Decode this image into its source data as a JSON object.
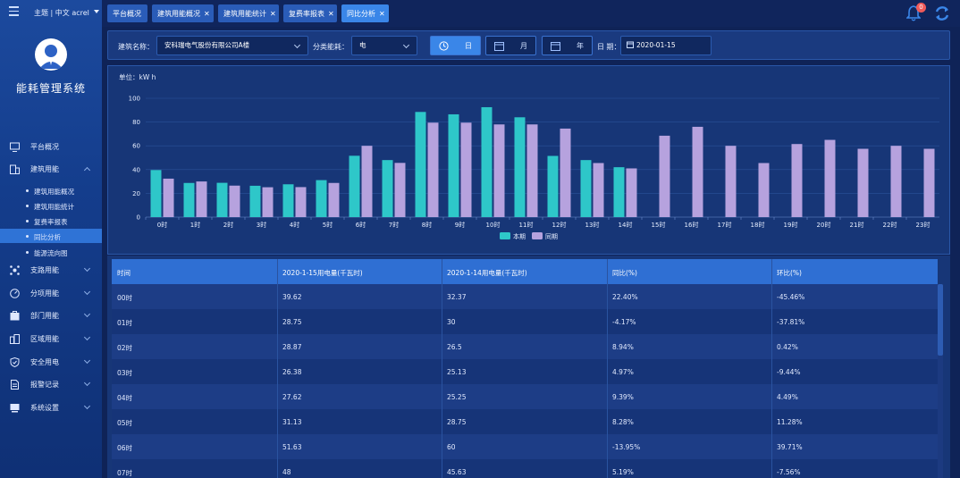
{
  "header": {
    "theme_label": "主题 | 中文  acrel",
    "notification_count": "0"
  },
  "sidebar": {
    "app_title": "能耗管理系统",
    "items": [
      {
        "label": "平台概况",
        "icon": "monitor-icon",
        "has_children": false
      },
      {
        "label": "建筑用能",
        "icon": "building-icon",
        "has_children": true
      },
      {
        "label": "支路用能",
        "icon": "branch-icon",
        "has_children": true
      },
      {
        "label": "分项用能",
        "icon": "gauge-icon",
        "has_children": true
      },
      {
        "label": "部门用能",
        "icon": "department-icon",
        "has_children": true
      },
      {
        "label": "区域用能",
        "icon": "region-icon",
        "has_children": true
      },
      {
        "label": "安全用电",
        "icon": "shield-icon",
        "has_children": true
      },
      {
        "label": "报警记录",
        "icon": "document-icon",
        "has_children": true
      },
      {
        "label": "系统设置",
        "icon": "settings-icon",
        "has_children": true
      }
    ],
    "subitems": [
      {
        "label": "建筑用能概况",
        "active": false
      },
      {
        "label": "建筑用能统计",
        "active": false
      },
      {
        "label": "复费率报表",
        "active": false
      },
      {
        "label": "同比分析",
        "active": true
      },
      {
        "label": "能源流向图",
        "active": false
      }
    ]
  },
  "tabs": [
    {
      "label": "平台概况",
      "closable": false,
      "active": false
    },
    {
      "label": "建筑用能概况",
      "closable": true,
      "active": false
    },
    {
      "label": "建筑用能统计",
      "closable": true,
      "active": false
    },
    {
      "label": "复费率报表",
      "closable": true,
      "active": false
    },
    {
      "label": "同比分析",
      "closable": true,
      "active": true
    }
  ],
  "filters": {
    "building_label": "建筑名称：",
    "building_value": "安科瑞电气股份有限公司A楼",
    "category_label": "分类能耗：",
    "category_value": "电",
    "period_buttons": [
      {
        "label": "日",
        "icon": "clock-icon",
        "active": true
      },
      {
        "label": "月",
        "icon": "calendar-icon",
        "active": false
      },
      {
        "label": "年",
        "icon": "calendar-icon",
        "active": false
      }
    ],
    "date_label": "日 期：",
    "date_value": "2020-01-15"
  },
  "chart_data": {
    "type": "bar",
    "unit_label": "单位：kW h",
    "categories": [
      "0时",
      "1时",
      "2时",
      "3时",
      "4时",
      "5时",
      "6时",
      "7时",
      "8时",
      "9时",
      "10时",
      "11时",
      "12时",
      "13时",
      "14时",
      "15时",
      "16时",
      "17时",
      "18时",
      "19时",
      "20时",
      "21时",
      "22时",
      "23时"
    ],
    "series": [
      {
        "name": "本期",
        "color": "#2ec7c9",
        "values": [
          39.62,
          28.75,
          28.87,
          26.38,
          27.62,
          31.13,
          51.63,
          48,
          88.5,
          86.5,
          92.5,
          84,
          51.5,
          48,
          42,
          null,
          null,
          null,
          null,
          null,
          null,
          null,
          null,
          null
        ]
      },
      {
        "name": "同期",
        "color": "#b6a2de",
        "values": [
          32.37,
          30,
          26.5,
          25.13,
          25.25,
          28.75,
          60,
          45.63,
          79.5,
          79.5,
          78,
          78,
          74.5,
          45.5,
          41,
          68.5,
          76,
          60,
          45.5,
          61.5,
          65,
          57.5,
          60,
          57.5
        ]
      }
    ],
    "ylim": [
      0,
      100
    ],
    "yticks": [
      0,
      20,
      40,
      60,
      80,
      100
    ],
    "grid": true,
    "legend": "bottom-center"
  },
  "table": {
    "columns": [
      "时间",
      "2020-1-15用电量(千瓦时)",
      "2020-1-14用电量(千瓦时)",
      "同比(%)",
      "环比(%)"
    ],
    "rows": [
      [
        "00时",
        "39.62",
        "32.37",
        "22.40%",
        "-45.46%"
      ],
      [
        "01时",
        "28.75",
        "30",
        "-4.17%",
        "-37.81%"
      ],
      [
        "02时",
        "28.87",
        "26.5",
        "8.94%",
        "0.42%"
      ],
      [
        "03时",
        "26.38",
        "25.13",
        "4.97%",
        "-9.44%"
      ],
      [
        "04时",
        "27.62",
        "25.25",
        "9.39%",
        "4.49%"
      ],
      [
        "05时",
        "31.13",
        "28.75",
        "8.28%",
        "11.28%"
      ],
      [
        "06时",
        "51.63",
        "60",
        "-13.95%",
        "39.71%"
      ],
      [
        "07时",
        "48",
        "45.63",
        "5.19%",
        "-7.56%"
      ]
    ]
  },
  "colors": {
    "sidebar": "#143d8c",
    "accent": "#3a86e8",
    "current_bar": "#2ec7c9",
    "previous_bar": "#b6a2de"
  }
}
